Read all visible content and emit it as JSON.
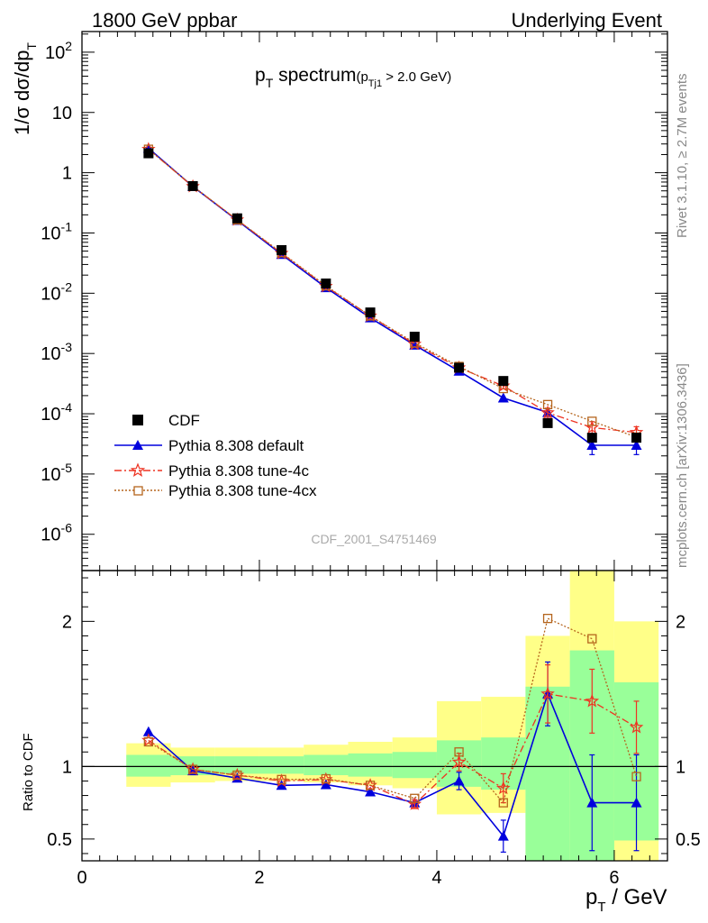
{
  "header": {
    "left": "1800 GeV ppbar",
    "right": "Underlying Event"
  },
  "side_labels": {
    "rivet": "Rivet 3.1.10, ≥ 2.7M events",
    "mcplots": "mcplots.cern.ch [arXiv:1306.3436]"
  },
  "colors": {
    "cdf": "#000000",
    "default": "#0000dd",
    "tune4c": "#ee3322",
    "tune4cx": "#b5651d",
    "band_yellow": "#ffff88",
    "band_green": "#99ff99"
  },
  "chart_data": [
    {
      "type": "scatter",
      "title_main": "p",
      "title_main_sub": "T",
      "title_main_rest": " spectrum",
      "title_cut": "(p",
      "title_cut_sub": "Tj1",
      "title_cut_rest": " > 2.0 GeV)",
      "ylabel": "1/σ dσ/dp",
      "ylabel_sub": "T",
      "yscale": "log",
      "xlim": [
        0,
        6.6
      ],
      "ylim": [
        2.5e-07,
        220
      ],
      "ytick_labels": [
        "10^-6",
        "10^-5",
        "10^-4",
        "10^-3",
        "10^-2",
        "10^-1",
        "1",
        "10",
        "10^2"
      ],
      "watermark": "CDF_2001_S4751469",
      "legend_position": "bottom-left",
      "x": [
        0.75,
        1.25,
        1.75,
        2.25,
        2.75,
        3.25,
        3.75,
        4.25,
        4.75,
        5.25,
        5.75,
        6.25
      ],
      "series": [
        {
          "name": "CDF",
          "marker": "square",
          "values": [
            2.1,
            0.6,
            0.175,
            0.052,
            0.0145,
            0.0048,
            0.0019,
            0.00058,
            0.00035,
            7e-05,
            4e-05,
            4e-05
          ]
        },
        {
          "name": "Pythia 8.308 default",
          "marker": "triangle",
          "line": "solid",
          "values": [
            2.55,
            0.59,
            0.162,
            0.044,
            0.0124,
            0.0039,
            0.00138,
            0.00051,
            0.000183,
            0.000105,
            3e-05,
            3e-05
          ],
          "err": [
            0,
            0,
            0,
            0,
            0,
            0,
            0,
            0,
            0,
            1.5e-05,
            9e-06,
            9e-06
          ]
        },
        {
          "name": "Pythia 8.308 tune-4c",
          "marker": "star",
          "line": "dashdot",
          "values": [
            2.45,
            0.59,
            0.165,
            0.046,
            0.013,
            0.0042,
            0.00143,
            0.00058,
            0.00029,
            0.000104,
            5.9e-05,
            4.9e-05
          ],
          "err": [
            0,
            0,
            0,
            0,
            0,
            0,
            0,
            0,
            3e-05,
            2e-05,
            1.5e-05,
            1.2e-05
          ]
        },
        {
          "name": "Pythia 8.308 tune-4cx",
          "marker": "open-square",
          "line": "dotted",
          "values": [
            2.45,
            0.6,
            0.165,
            0.047,
            0.0133,
            0.0042,
            0.0015,
            0.00061,
            0.000262,
            0.000142,
            7.5e-05,
            4.1e-05
          ],
          "err": [
            0,
            0,
            0,
            0,
            0,
            0,
            0,
            0,
            0,
            0,
            0,
            0
          ]
        }
      ]
    },
    {
      "type": "scatter",
      "ylabel": "Ratio to CDF",
      "xlabel": "p",
      "xlabel_sub": "T",
      "xlabel_rest": " / GeV",
      "xlim": [
        0,
        6.6
      ],
      "ylim": [
        0.35,
        2.35
      ],
      "xticks": [
        0,
        2,
        4,
        6
      ],
      "xtick_labels": [
        "0",
        "2",
        "4",
        "6"
      ],
      "yticks": [
        0.5,
        1,
        2
      ],
      "ytick_labels": [
        "0.5",
        "1",
        "2"
      ],
      "bins": [
        0.5,
        1.0,
        1.5,
        2.0,
        2.5,
        3.0,
        3.5,
        4.0,
        4.5,
        5.0,
        5.5,
        6.0,
        6.5
      ],
      "band_green": [
        [
          0.93,
          1.08
        ],
        [
          0.94,
          1.07
        ],
        [
          0.95,
          1.07
        ],
        [
          0.95,
          1.07
        ],
        [
          0.94,
          1.08
        ],
        [
          0.93,
          1.09
        ],
        [
          0.92,
          1.1
        ],
        [
          0.86,
          1.18
        ],
        [
          0.84,
          1.2
        ],
        [
          0.35,
          1.55
        ],
        [
          0.35,
          1.8
        ],
        [
          0.49,
          1.58
        ]
      ],
      "band_yellow": [
        [
          0.86,
          1.16
        ],
        [
          0.89,
          1.13
        ],
        [
          0.9,
          1.13
        ],
        [
          0.9,
          1.13
        ],
        [
          0.89,
          1.15
        ],
        [
          0.87,
          1.17
        ],
        [
          0.85,
          1.2
        ],
        [
          0.67,
          1.45
        ],
        [
          0.68,
          1.48
        ],
        [
          0.35,
          1.9
        ],
        [
          0.35,
          2.35
        ],
        [
          0.35,
          2.0
        ]
      ],
      "x": [
        0.75,
        1.25,
        1.75,
        2.25,
        2.75,
        3.25,
        3.75,
        4.25,
        4.75,
        5.25,
        5.75,
        6.25
      ],
      "series": [
        {
          "name": "Pythia 8.308 default",
          "values": [
            1.24,
            0.97,
            0.92,
            0.87,
            0.875,
            0.825,
            0.75,
            0.9,
            0.52,
            1.5,
            0.75,
            0.75
          ],
          "err": [
            0,
            0,
            0,
            0,
            0,
            0,
            0.02,
            0.06,
            0.11,
            0.22,
            0.33,
            0.33
          ]
        },
        {
          "name": "Pythia 8.308 tune-4c",
          "values": [
            1.18,
            0.98,
            0.94,
            0.9,
            0.91,
            0.87,
            0.74,
            1.03,
            0.85,
            1.5,
            1.45,
            1.27
          ],
          "err": [
            0,
            0,
            0,
            0,
            0,
            0,
            0.03,
            0.06,
            0.1,
            0.2,
            0.22,
            0.18
          ]
        },
        {
          "name": "Pythia 8.308 tune-4cx",
          "values": [
            1.17,
            0.98,
            0.94,
            0.91,
            0.915,
            0.87,
            0.78,
            1.1,
            0.75,
            2.02,
            1.88,
            0.93
          ],
          "err": [
            0,
            0,
            0,
            0,
            0,
            0,
            0,
            0,
            0,
            0,
            0,
            0
          ]
        }
      ]
    }
  ]
}
